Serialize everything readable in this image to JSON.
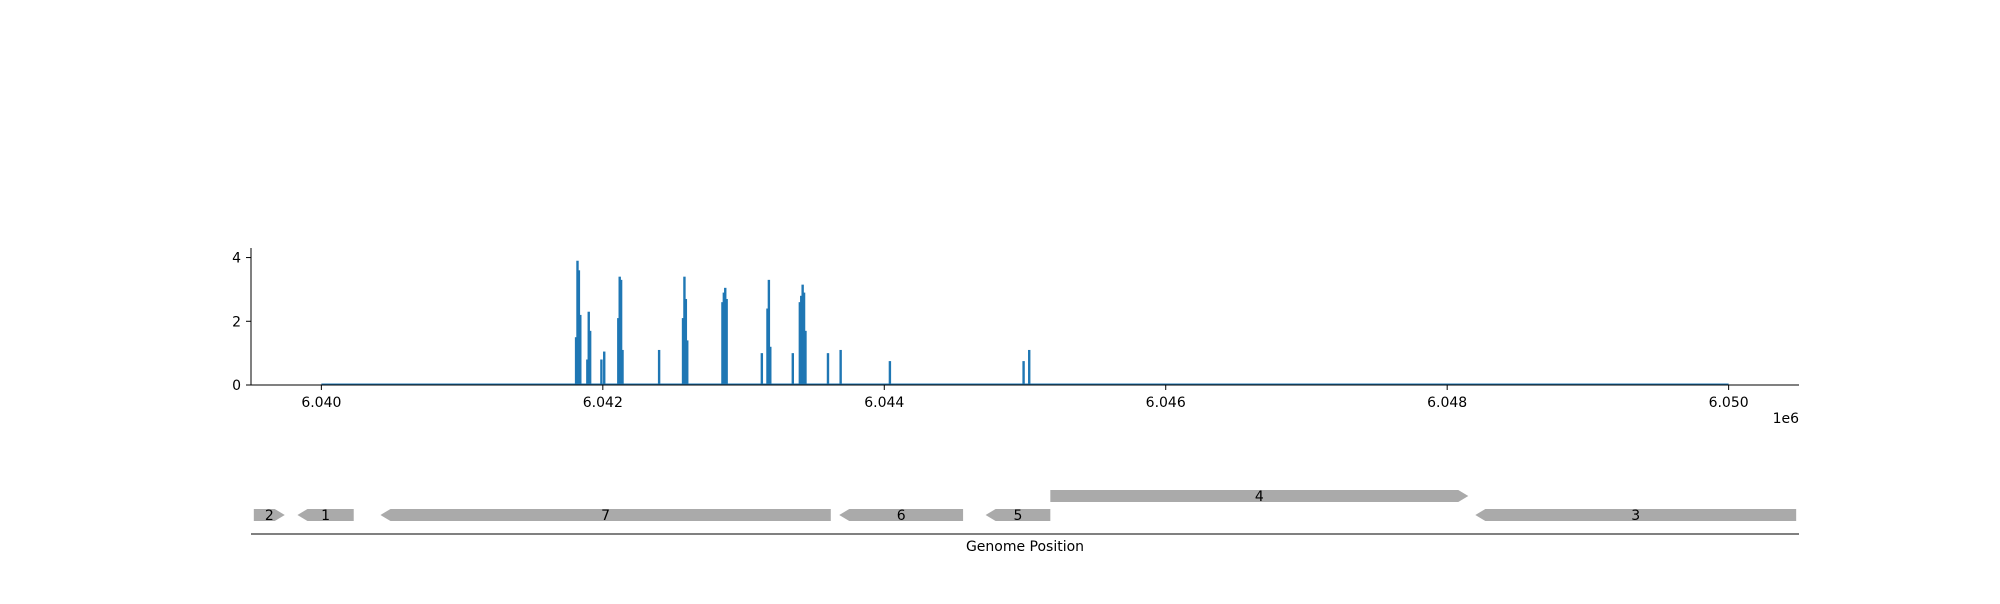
{
  "chart_data": [
    {
      "type": "bar",
      "title": "",
      "xlabel": "",
      "ylabel": "",
      "xlim": [
        6039500,
        6050500
      ],
      "ylim": [
        0,
        4.3
      ],
      "x_offset_label": "1e6",
      "x_ticks": [
        6040000,
        6042000,
        6044000,
        6046000,
        6048000,
        6050000
      ],
      "x_tick_labels": [
        "6.040",
        "6.042",
        "6.044",
        "6.046",
        "6.048",
        "6.050"
      ],
      "y_ticks": [
        0,
        2,
        4
      ],
      "y_tick_labels": [
        "0",
        "2",
        "4"
      ],
      "baseline": {
        "x": [
          6040000,
          6050000
        ],
        "y": 0
      },
      "color": "#1f77b4",
      "grid": false,
      "x": [
        6041810,
        6041820,
        6041830,
        6041840,
        6041890,
        6041900,
        6041910,
        6041990,
        6042010,
        6042110,
        6042120,
        6042130,
        6042140,
        6042400,
        6042570,
        6042580,
        6042590,
        6042600,
        6042850,
        6042860,
        6042870,
        6042880,
        6043130,
        6043170,
        6043180,
        6043190,
        6043350,
        6043400,
        6043410,
        6043420,
        6043430,
        6043440,
        6043600,
        6043690,
        6044040,
        6044990,
        6045030
      ],
      "values": [
        1.5,
        3.9,
        3.6,
        2.2,
        0.8,
        2.3,
        1.7,
        0.8,
        1.05,
        2.1,
        3.4,
        3.3,
        1.1,
        1.1,
        2.1,
        3.4,
        2.7,
        1.4,
        2.6,
        2.9,
        3.05,
        2.7,
        1.0,
        2.4,
        3.3,
        1.2,
        1.0,
        2.6,
        2.8,
        3.15,
        2.9,
        1.7,
        1.0,
        1.1,
        0.75,
        0.75,
        1.1
      ]
    },
    {
      "type": "gene-track",
      "xlabel": "Genome Position",
      "xlim": [
        6039500,
        6050500
      ],
      "features": [
        {
          "label": "2",
          "start": 6039520,
          "end": 6039740,
          "strand": "+",
          "row": 0
        },
        {
          "label": "1",
          "start": 6039830,
          "end": 6040230,
          "strand": "-",
          "row": 0
        },
        {
          "label": "7",
          "start": 6040420,
          "end": 6043620,
          "strand": "-",
          "row": 0
        },
        {
          "label": "6",
          "start": 6043680,
          "end": 6044560,
          "strand": "-",
          "row": 0
        },
        {
          "label": "5",
          "start": 6044720,
          "end": 6045180,
          "strand": "-",
          "row": 0
        },
        {
          "label": "4",
          "start": 6045180,
          "end": 6048150,
          "strand": "+",
          "row": 1
        },
        {
          "label": "3",
          "start": 6048200,
          "end": 6050480,
          "strand": "-",
          "row": 0
        }
      ]
    }
  ]
}
